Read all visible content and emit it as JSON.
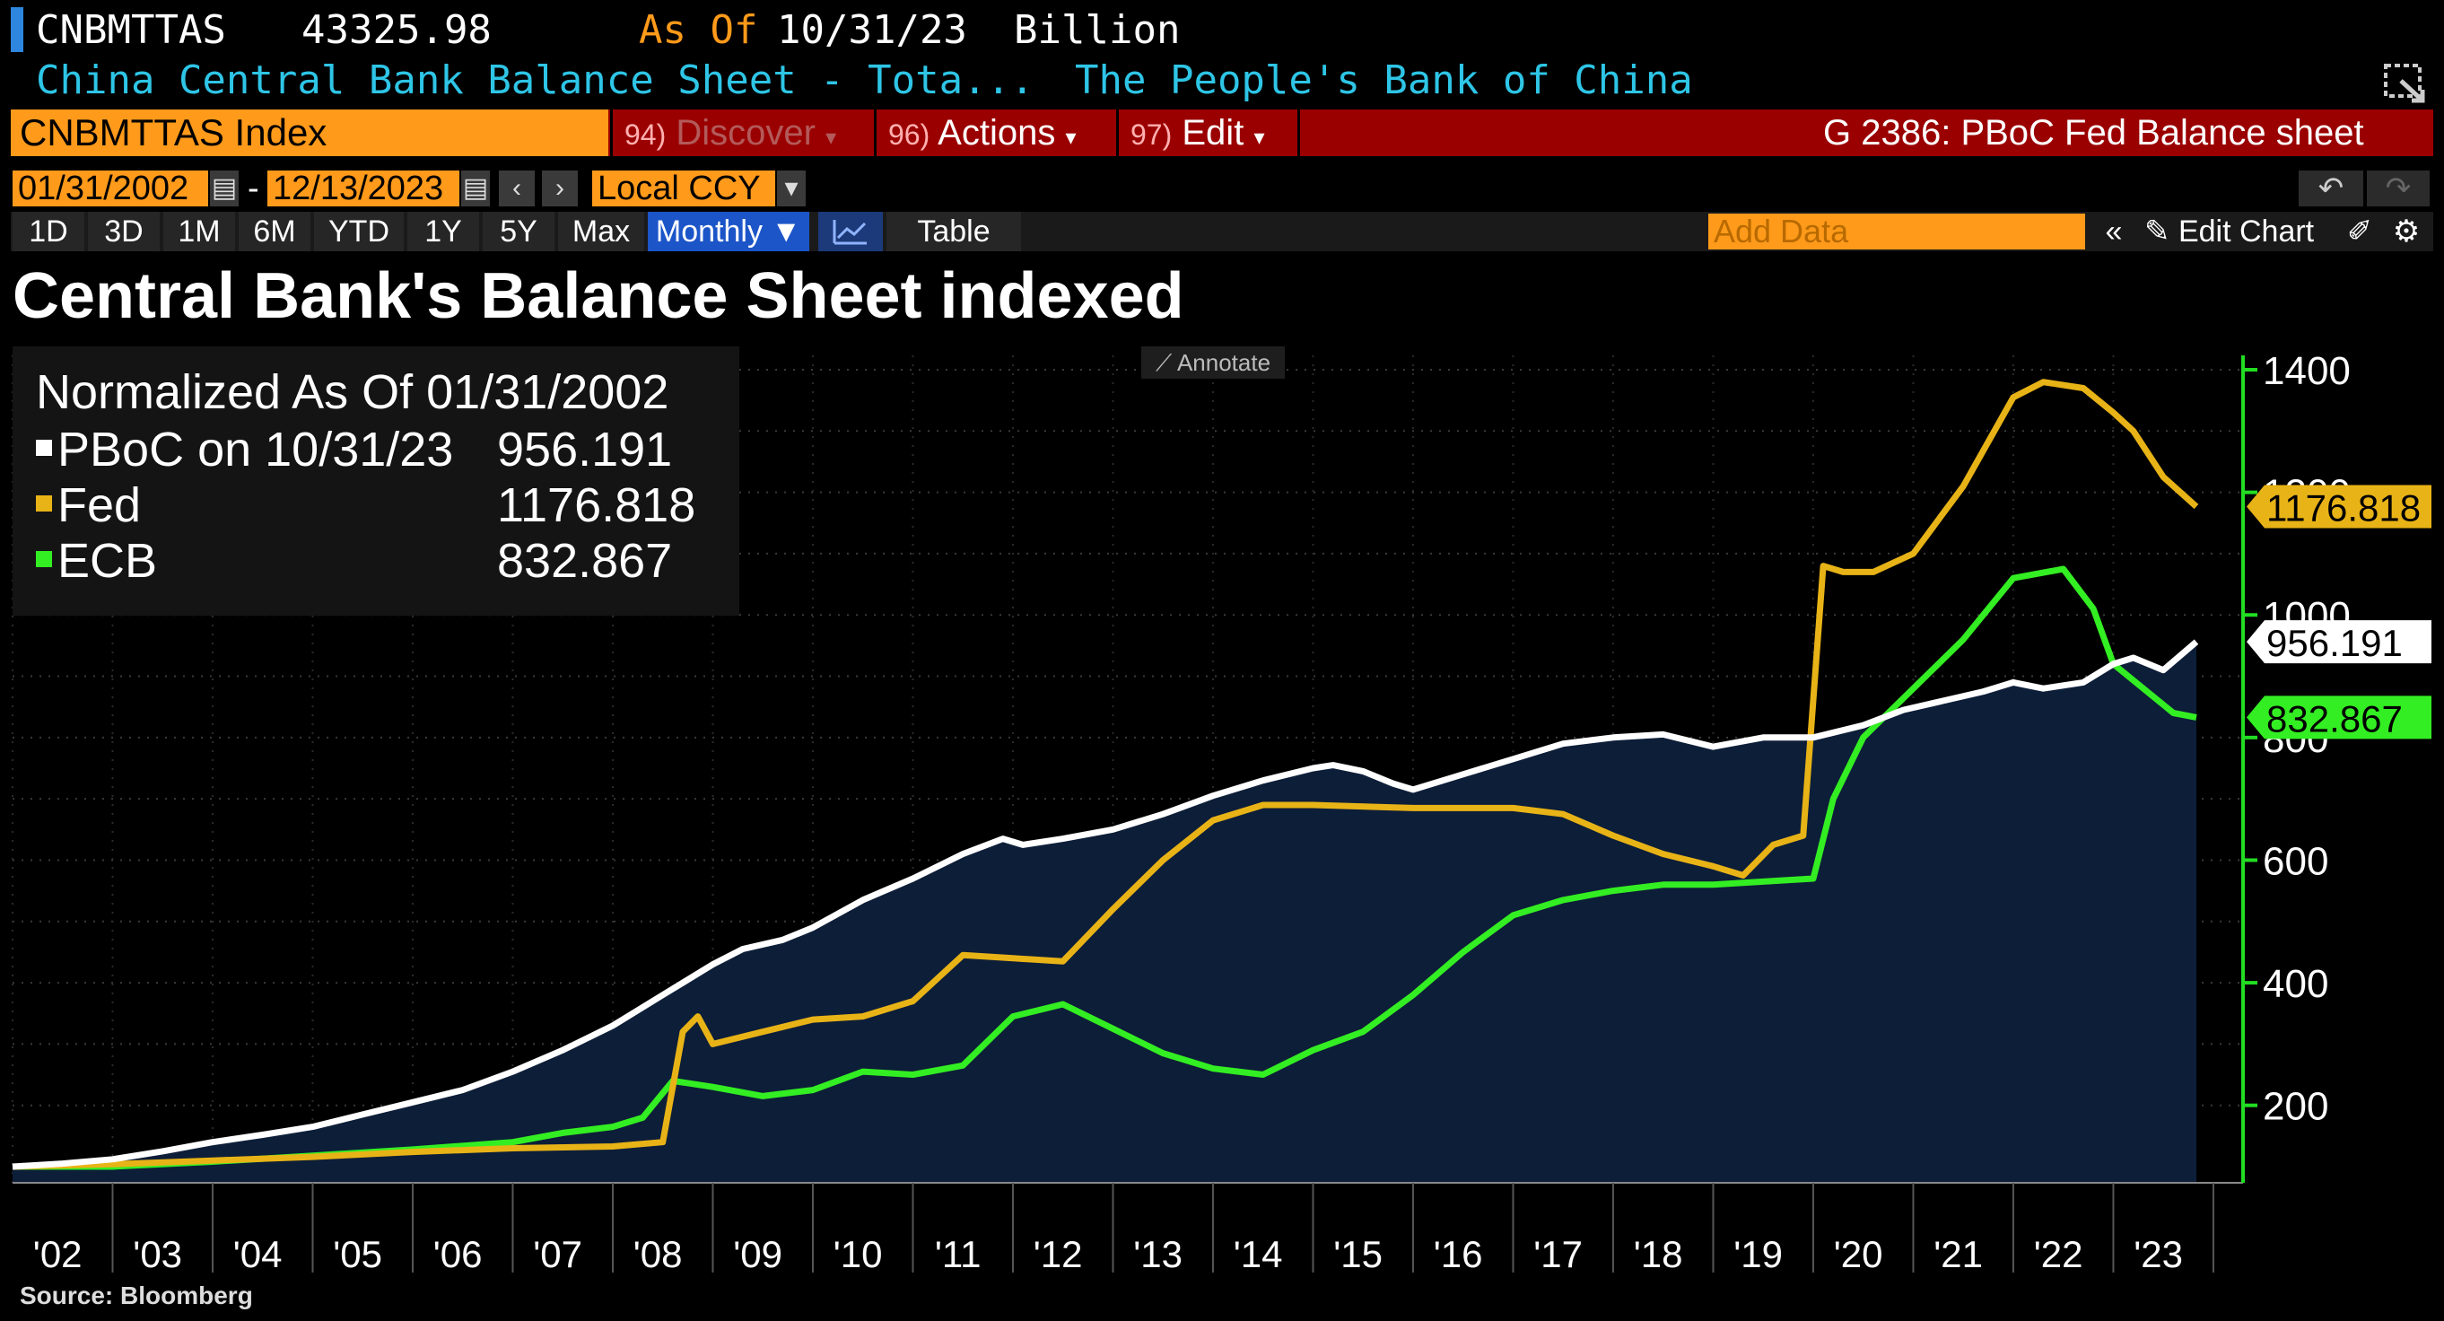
{
  "header": {
    "ticker": "CNBMTTAS",
    "value": "43325.98",
    "asof_label": "As Of",
    "asof_date": "10/31/23",
    "unit": "Billion",
    "description": "China Central Bank Balance Sheet - Tota...",
    "source_name": "The People's Bank of China"
  },
  "command_bar": {
    "security": "CNBMTTAS Index",
    "discover_num": "94)",
    "discover": "Discover",
    "actions_num": "96)",
    "actions": "Actions",
    "edit_num": "97)",
    "edit": "Edit",
    "graph_title": "G 2386: PBoC Fed Balance sheet"
  },
  "date_controls": {
    "start_date": "01/31/2002",
    "dash": "-",
    "end_date": "12/13/2023",
    "currency": "Local CCY"
  },
  "range_buttons": [
    "1D",
    "3D",
    "1M",
    "6M",
    "YTD",
    "1Y",
    "5Y",
    "Max"
  ],
  "periodicity": "Monthly",
  "table_label": "Table",
  "add_data_placeholder": "Add Data",
  "edit_chart_label": "Edit Chart",
  "annotate_label": "Annotate",
  "source_text": "Source: Bloomberg",
  "colors": {
    "pboc": "#ffffff",
    "fed": "#e8b316",
    "ecb": "#33ee22",
    "area": "#0d1e38",
    "axis": "#22dd22"
  },
  "chart_data": {
    "type": "line",
    "title": "Central Bank's Balance Sheet indexed",
    "normalized_label": "Normalized As Of 01/31/2002",
    "ylim": [
      100,
      1400
    ],
    "y_ticks": [
      {
        "value": 200,
        "label": "200"
      },
      {
        "value": 400,
        "label": "400"
      },
      {
        "value": 600,
        "label": "600"
      },
      {
        "value": 800,
        "label": "800"
      },
      {
        "value": 1000,
        "label": "1000"
      },
      {
        "value": 1200,
        "label": "1200"
      },
      {
        "value": 1400,
        "label": "1400"
      }
    ],
    "x_range": [
      2002.0,
      2024.0
    ],
    "x_ticks": [
      "'02",
      "'03",
      "'04",
      "'05",
      "'06",
      "'07",
      "'08",
      "'09",
      "'10",
      "'11",
      "'12",
      "'13",
      "'14",
      "'15",
      "'16",
      "'17",
      "'18",
      "'19",
      "'20",
      "'21",
      "'22",
      "'23"
    ],
    "series": [
      {
        "name": "PBoC",
        "legend_label": "PBoC on 10/31/23",
        "last_value": "956.191",
        "area": true,
        "points": [
          [
            2002.0,
            100
          ],
          [
            2002.5,
            105
          ],
          [
            2003.0,
            112
          ],
          [
            2003.5,
            125
          ],
          [
            2004.0,
            140
          ],
          [
            2004.5,
            152
          ],
          [
            2005.0,
            165
          ],
          [
            2005.5,
            185
          ],
          [
            2006.0,
            205
          ],
          [
            2006.5,
            225
          ],
          [
            2007.0,
            255
          ],
          [
            2007.5,
            290
          ],
          [
            2008.0,
            330
          ],
          [
            2008.5,
            380
          ],
          [
            2009.0,
            430
          ],
          [
            2009.3,
            455
          ],
          [
            2009.7,
            470
          ],
          [
            2010.0,
            490
          ],
          [
            2010.5,
            535
          ],
          [
            2011.0,
            570
          ],
          [
            2011.5,
            610
          ],
          [
            2011.9,
            635
          ],
          [
            2012.1,
            625
          ],
          [
            2012.5,
            635
          ],
          [
            2013.0,
            650
          ],
          [
            2013.5,
            675
          ],
          [
            2014.0,
            705
          ],
          [
            2014.5,
            730
          ],
          [
            2015.0,
            750
          ],
          [
            2015.2,
            755
          ],
          [
            2015.5,
            745
          ],
          [
            2015.8,
            725
          ],
          [
            2016.0,
            715
          ],
          [
            2016.5,
            740
          ],
          [
            2017.0,
            765
          ],
          [
            2017.5,
            790
          ],
          [
            2018.0,
            800
          ],
          [
            2018.5,
            805
          ],
          [
            2019.0,
            785
          ],
          [
            2019.5,
            800
          ],
          [
            2020.0,
            800
          ],
          [
            2020.5,
            820
          ],
          [
            2020.9,
            845
          ],
          [
            2021.3,
            860
          ],
          [
            2021.7,
            875
          ],
          [
            2022.0,
            890
          ],
          [
            2022.3,
            880
          ],
          [
            2022.7,
            890
          ],
          [
            2023.0,
            920
          ],
          [
            2023.2,
            930
          ],
          [
            2023.5,
            910
          ],
          [
            2023.83,
            956.191
          ]
        ]
      },
      {
        "name": "Fed",
        "legend_label": "Fed",
        "last_value": "1176.818",
        "points": [
          [
            2002.0,
            100
          ],
          [
            2003.0,
            104
          ],
          [
            2004.0,
            110
          ],
          [
            2005.0,
            116
          ],
          [
            2006.0,
            124
          ],
          [
            2007.0,
            130
          ],
          [
            2008.0,
            133
          ],
          [
            2008.5,
            140
          ],
          [
            2008.7,
            320
          ],
          [
            2008.85,
            345
          ],
          [
            2009.0,
            300
          ],
          [
            2009.5,
            320
          ],
          [
            2010.0,
            340
          ],
          [
            2010.5,
            345
          ],
          [
            2011.0,
            370
          ],
          [
            2011.5,
            445
          ],
          [
            2012.0,
            440
          ],
          [
            2012.5,
            435
          ],
          [
            2013.0,
            520
          ],
          [
            2013.5,
            600
          ],
          [
            2014.0,
            665
          ],
          [
            2014.5,
            690
          ],
          [
            2015.0,
            690
          ],
          [
            2016.0,
            685
          ],
          [
            2017.0,
            685
          ],
          [
            2017.5,
            675
          ],
          [
            2018.0,
            640
          ],
          [
            2018.5,
            610
          ],
          [
            2019.0,
            590
          ],
          [
            2019.3,
            575
          ],
          [
            2019.6,
            625
          ],
          [
            2019.9,
            640
          ],
          [
            2020.1,
            1080
          ],
          [
            2020.3,
            1070
          ],
          [
            2020.6,
            1070
          ],
          [
            2021.0,
            1100
          ],
          [
            2021.5,
            1210
          ],
          [
            2022.0,
            1355
          ],
          [
            2022.3,
            1380
          ],
          [
            2022.7,
            1370
          ],
          [
            2023.0,
            1330
          ],
          [
            2023.2,
            1300
          ],
          [
            2023.5,
            1225
          ],
          [
            2023.83,
            1176.818
          ]
        ]
      },
      {
        "name": "ECB",
        "legend_label": "ECB",
        "last_value": "832.867",
        "points": [
          [
            2002.0,
            100
          ],
          [
            2003.0,
            100
          ],
          [
            2004.0,
            108
          ],
          [
            2005.0,
            118
          ],
          [
            2006.0,
            128
          ],
          [
            2007.0,
            140
          ],
          [
            2007.5,
            155
          ],
          [
            2008.0,
            165
          ],
          [
            2008.3,
            180
          ],
          [
            2008.6,
            240
          ],
          [
            2009.0,
            230
          ],
          [
            2009.5,
            215
          ],
          [
            2010.0,
            225
          ],
          [
            2010.5,
            255
          ],
          [
            2011.0,
            250
          ],
          [
            2011.5,
            265
          ],
          [
            2012.0,
            345
          ],
          [
            2012.5,
            365
          ],
          [
            2013.0,
            325
          ],
          [
            2013.5,
            285
          ],
          [
            2014.0,
            260
          ],
          [
            2014.5,
            250
          ],
          [
            2015.0,
            290
          ],
          [
            2015.5,
            320
          ],
          [
            2016.0,
            380
          ],
          [
            2016.5,
            450
          ],
          [
            2017.0,
            510
          ],
          [
            2017.5,
            535
          ],
          [
            2018.0,
            550
          ],
          [
            2018.5,
            560
          ],
          [
            2019.0,
            560
          ],
          [
            2019.5,
            565
          ],
          [
            2020.0,
            570
          ],
          [
            2020.2,
            700
          ],
          [
            2020.5,
            800
          ],
          [
            2021.0,
            880
          ],
          [
            2021.5,
            960
          ],
          [
            2022.0,
            1060
          ],
          [
            2022.5,
            1075
          ],
          [
            2022.8,
            1010
          ],
          [
            2023.0,
            920
          ],
          [
            2023.3,
            880
          ],
          [
            2023.6,
            840
          ],
          [
            2023.83,
            832.867
          ]
        ]
      }
    ]
  }
}
